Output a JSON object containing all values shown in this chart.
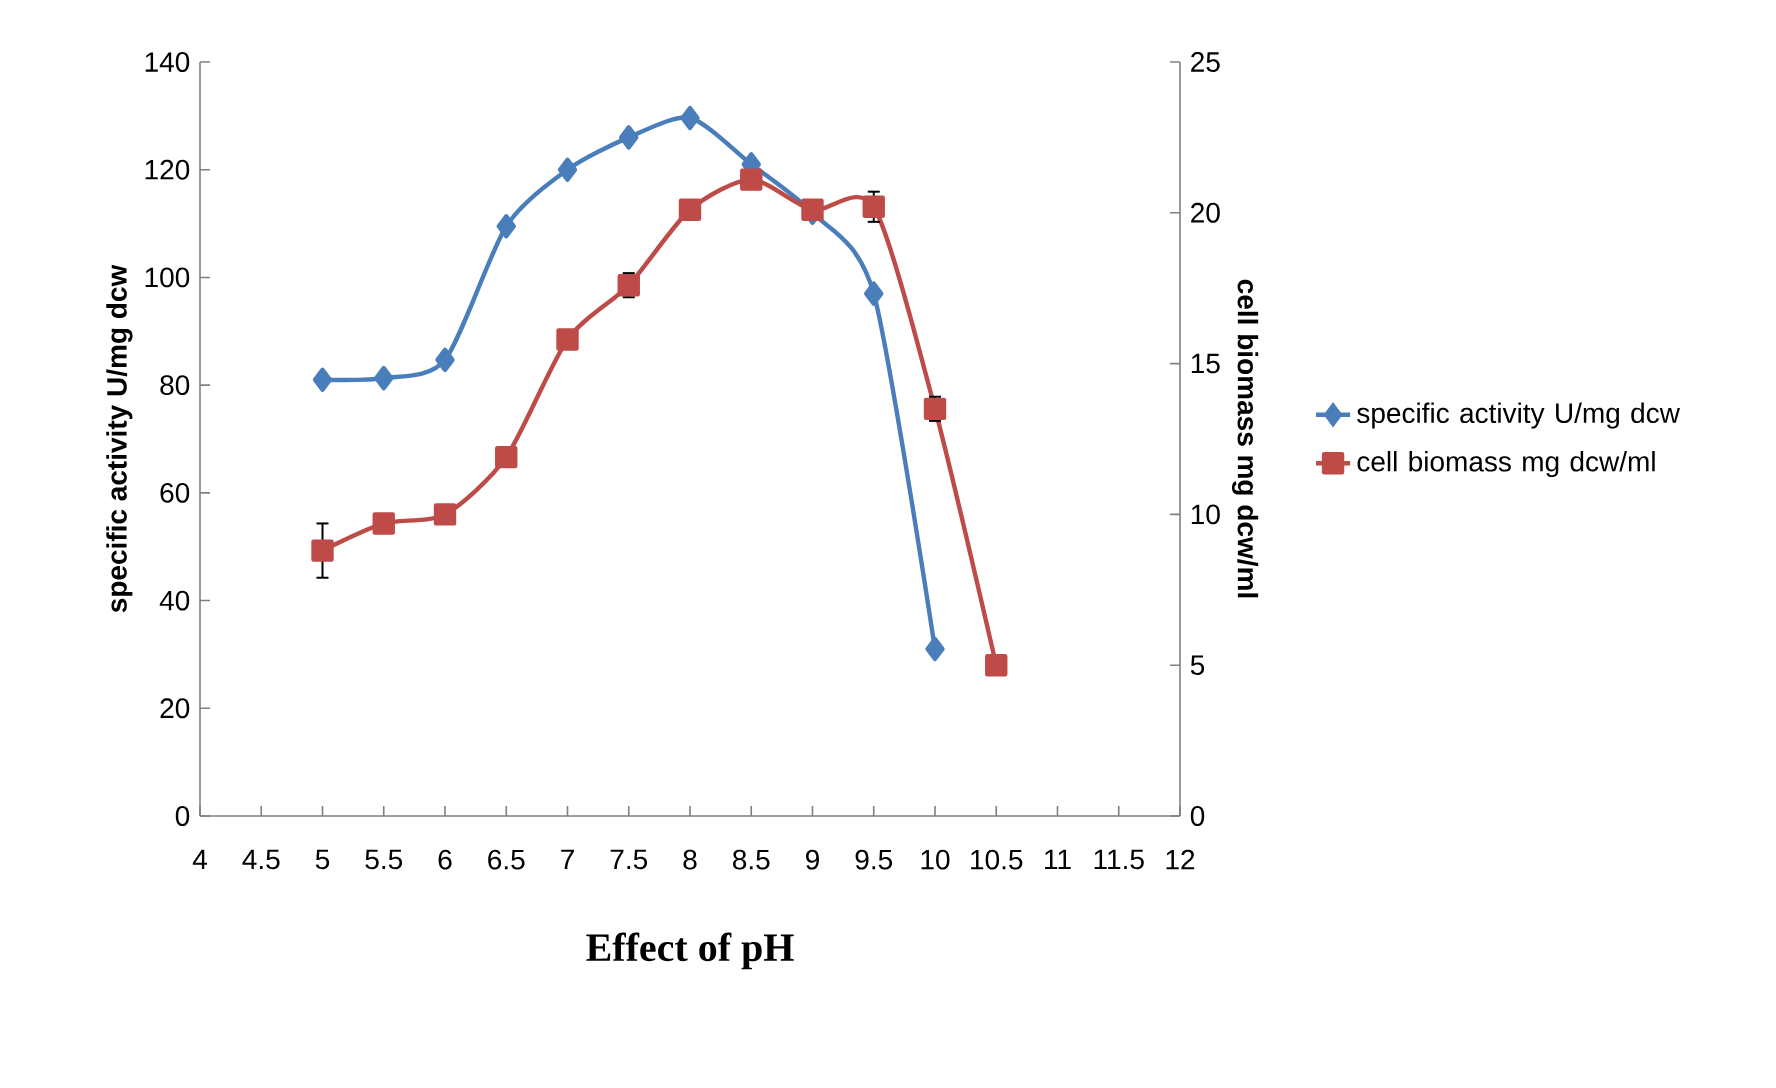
{
  "chart_data": {
    "type": "line",
    "xlabel": "Effect of pH",
    "ylabel": "specific activity U/mg dcw",
    "y2label": "cell biomass mg dcw/ml",
    "xlim": [
      4,
      12
    ],
    "xticks": [
      4,
      4.5,
      5,
      5.5,
      6,
      6.5,
      7,
      7.5,
      8,
      8.5,
      9,
      9.5,
      10,
      10.5,
      11,
      11.5,
      12
    ],
    "ylim": [
      0,
      140
    ],
    "yticks": [
      0,
      20,
      40,
      60,
      80,
      100,
      120,
      140
    ],
    "y2lim": [
      0,
      25
    ],
    "y2ticks": [
      0,
      5,
      10,
      15,
      20,
      25
    ],
    "legend": "right",
    "series": [
      {
        "name": "specific activity U/mg dcw",
        "color": "#4a7ebb",
        "marker": "diamond",
        "x": [
          5,
          5.5,
          6,
          6.5,
          7,
          7.5,
          8,
          8.5,
          9,
          9.5,
          10
        ],
        "values": [
          81,
          81.3,
          84.7,
          109.5,
          120,
          126,
          129.6,
          121,
          112,
          97,
          31
        ]
      },
      {
        "name": "cell biomass mg dcw/ml",
        "color": "#be4b48",
        "marker": "square",
        "axis": "y2",
        "x": [
          5,
          5.5,
          6,
          6.5,
          7,
          7.5,
          8,
          8.5,
          9,
          9.5,
          10,
          10.5
        ],
        "values": [
          8.8,
          9.7,
          10,
          11.9,
          15.8,
          17.6,
          20.1,
          21.1,
          20.1,
          20.2,
          13.5,
          5.0
        ],
        "errors": [
          0.9,
          null,
          null,
          null,
          null,
          0.4,
          null,
          null,
          null,
          0.5,
          0.4,
          null
        ]
      }
    ]
  }
}
